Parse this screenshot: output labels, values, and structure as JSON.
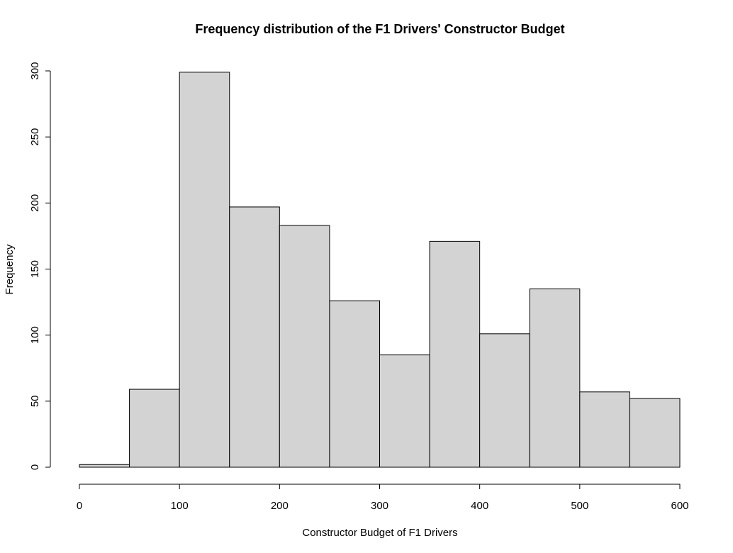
{
  "chart_data": {
    "type": "bar",
    "title": "Frequency distribution of the F1 Drivers' Constructor Budget",
    "xlabel": "Constructor Budget of F1 Drivers",
    "ylabel": "Frequency",
    "bins": [
      {
        "start": 0,
        "end": 50,
        "count": 2
      },
      {
        "start": 50,
        "end": 100,
        "count": 59
      },
      {
        "start": 100,
        "end": 150,
        "count": 299
      },
      {
        "start": 150,
        "end": 200,
        "count": 197
      },
      {
        "start": 200,
        "end": 250,
        "count": 183
      },
      {
        "start": 250,
        "end": 300,
        "count": 126
      },
      {
        "start": 300,
        "end": 350,
        "count": 85
      },
      {
        "start": 350,
        "end": 400,
        "count": 171
      },
      {
        "start": 400,
        "end": 450,
        "count": 101
      },
      {
        "start": 450,
        "end": 500,
        "count": 135
      },
      {
        "start": 500,
        "end": 550,
        "count": 57
      },
      {
        "start": 550,
        "end": 600,
        "count": 52
      }
    ],
    "xlim": [
      0,
      600
    ],
    "ylim": [
      0,
      300
    ],
    "x_ticks": [
      0,
      100,
      200,
      300,
      400,
      500,
      600
    ],
    "y_ticks": [
      0,
      50,
      100,
      150,
      200,
      250,
      300
    ],
    "bar_color": "#d3d3d3",
    "grid": false,
    "legend": "none"
  }
}
